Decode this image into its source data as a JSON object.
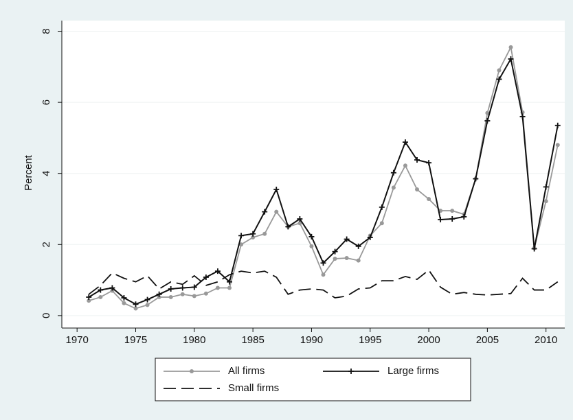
{
  "chart_data": {
    "type": "line",
    "y_label": "Percent",
    "x": [
      1971,
      1972,
      1973,
      1974,
      1975,
      1976,
      1977,
      1978,
      1979,
      1980,
      1981,
      1982,
      1983,
      1984,
      1985,
      1986,
      1987,
      1988,
      1989,
      1990,
      1991,
      1992,
      1993,
      1994,
      1995,
      1996,
      1997,
      1998,
      1999,
      2000,
      2001,
      2002,
      2003,
      2004,
      2005,
      2006,
      2007,
      2008,
      2009,
      2010,
      2011
    ],
    "series": [
      {
        "name": "All firms",
        "color": "#999999",
        "marker": "circle",
        "dash": "solid",
        "values": [
          0.42,
          0.52,
          0.7,
          0.35,
          0.2,
          0.3,
          0.52,
          0.52,
          0.6,
          0.55,
          0.62,
          0.78,
          0.78,
          2.0,
          2.2,
          2.3,
          2.92,
          2.5,
          2.6,
          1.95,
          1.15,
          1.6,
          1.62,
          1.55,
          2.25,
          2.6,
          3.6,
          4.22,
          3.55,
          3.28,
          2.95,
          2.95,
          2.85,
          3.85,
          5.7,
          6.9,
          7.55,
          5.72,
          1.9,
          3.22,
          4.8
        ]
      },
      {
        "name": "Large firms",
        "color": "#111111",
        "marker": "plus",
        "dash": "solid",
        "values": [
          0.52,
          0.72,
          0.78,
          0.5,
          0.32,
          0.45,
          0.6,
          0.75,
          0.78,
          0.8,
          1.08,
          1.25,
          0.95,
          2.25,
          2.3,
          2.92,
          3.55,
          2.5,
          2.72,
          2.22,
          1.48,
          1.8,
          2.15,
          1.95,
          2.2,
          3.05,
          4.02,
          4.88,
          4.38,
          4.3,
          2.7,
          2.72,
          2.78,
          3.85,
          5.48,
          6.65,
          7.22,
          5.6,
          1.88,
          3.62,
          5.35
        ]
      },
      {
        "name": "Small firms",
        "color": "#111111",
        "marker": null,
        "dash": "long-dash",
        "values": [
          0.6,
          0.85,
          1.2,
          1.05,
          0.95,
          1.12,
          0.75,
          0.95,
          0.88,
          1.12,
          0.85,
          0.95,
          1.15,
          1.25,
          1.2,
          1.25,
          1.08,
          0.6,
          0.72,
          0.75,
          0.72,
          0.5,
          0.55,
          0.75,
          0.78,
          0.98,
          0.98,
          1.1,
          1.02,
          1.28,
          0.8,
          0.6,
          0.65,
          0.6,
          0.58,
          0.6,
          0.62,
          1.05,
          0.72,
          0.72,
          0.95
        ]
      }
    ],
    "xlim": [
      1968.7,
      2011.6
    ],
    "xticks": [
      1970,
      1975,
      1980,
      1985,
      1990,
      1995,
      2000,
      2005,
      2010
    ],
    "ylim": [
      -0.35,
      8.3
    ],
    "yticks": [
      0,
      2,
      4,
      6,
      8
    ],
    "grid": true,
    "legend": "bottom"
  }
}
